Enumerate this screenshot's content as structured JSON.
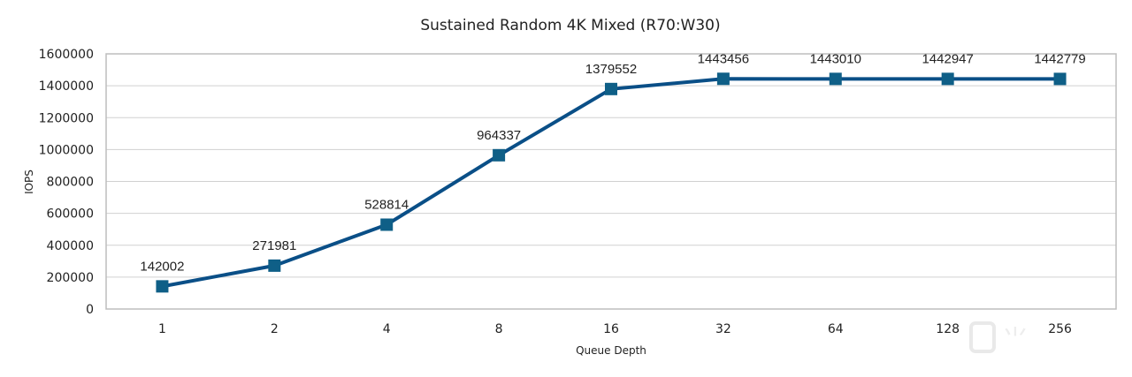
{
  "chart_data": {
    "type": "line",
    "title": "Sustained Random 4K Mixed (R70:W30)",
    "xlabel": "Queue Depth",
    "ylabel": "IOPS",
    "categories": [
      "1",
      "2",
      "4",
      "8",
      "16",
      "32",
      "64",
      "128",
      "256"
    ],
    "series": [
      {
        "name": "IOPS",
        "values": [
          142002,
          271981,
          528814,
          964337,
          1379552,
          1443456,
          1443010,
          1442947,
          1442779
        ]
      }
    ],
    "ylim": [
      0,
      1600000
    ],
    "yticks": [
      0,
      200000,
      400000,
      600000,
      800000,
      1000000,
      1200000,
      1400000,
      1600000
    ],
    "grid": true,
    "legend": "none",
    "colors": {
      "line": "#0a4f87",
      "marker": "#0f5f87",
      "grid": "#d0d0d0"
    }
  },
  "watermark": "小黑盒"
}
